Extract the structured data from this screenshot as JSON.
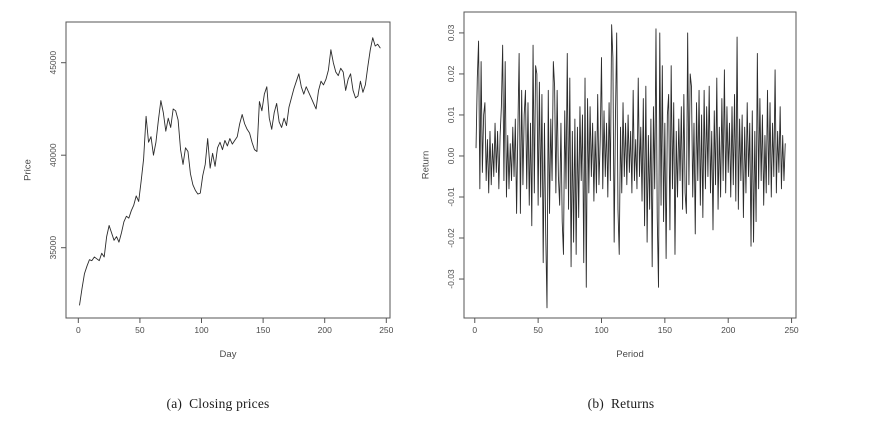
{
  "styles": {
    "background": "#ffffff",
    "axis_color": "#555555",
    "text_color": "#4a4a4a",
    "series_color": "#2b2b2b"
  },
  "figure": {
    "panels": [
      {
        "caption_tag": "(a)",
        "caption_text": "Closing prices"
      },
      {
        "caption_tag": "(b)",
        "caption_text": "Returns"
      }
    ]
  },
  "chart_data": [
    {
      "type": "line",
      "title": "",
      "xlabel": "Day",
      "ylabel": "Price",
      "legend": null,
      "grid": false,
      "xticks": [
        0,
        50,
        100,
        150,
        200,
        250
      ],
      "xtick_labels": [
        "0",
        "50",
        "100",
        "150",
        "200",
        "250"
      ],
      "yticks": [
        35000,
        40000,
        45000
      ],
      "ytick_labels": [
        "35000",
        "40000",
        "45000"
      ],
      "xlim": [
        -10,
        253
      ],
      "ylim": [
        31200,
        47200
      ],
      "x_start": 1,
      "x_step": 2,
      "values": [
        31900,
        32800,
        33600,
        34000,
        34350,
        34300,
        34500,
        34400,
        34300,
        34700,
        34500,
        35600,
        36200,
        35800,
        35400,
        35600,
        35300,
        35800,
        36400,
        36700,
        36600,
        37000,
        37300,
        37800,
        37500,
        38600,
        39800,
        42100,
        40700,
        41000,
        40000,
        40700,
        41900,
        42950,
        42300,
        41300,
        42000,
        41500,
        42500,
        42400,
        41900,
        40300,
        39500,
        40400,
        40200,
        39000,
        38400,
        38100,
        37900,
        37950,
        38900,
        39500,
        40900,
        39300,
        40100,
        39400,
        40400,
        40700,
        40300,
        40800,
        40500,
        40900,
        40600,
        40800,
        41000,
        41700,
        42200,
        41700,
        41400,
        41200,
        40700,
        40300,
        40200,
        42900,
        42400,
        43300,
        43700,
        42000,
        41400,
        42300,
        42800,
        41800,
        41500,
        42000,
        41600,
        42600,
        43100,
        43600,
        44000,
        44400,
        43700,
        43300,
        43700,
        43400,
        43100,
        42800,
        42500,
        43500,
        44000,
        43800,
        44100,
        44600,
        45700,
        45000,
        44500,
        44300,
        44700,
        44500,
        43500,
        44100,
        44400,
        43500,
        43100,
        43200,
        44000,
        43400,
        43800,
        44800,
        45700,
        46350,
        45900,
        46000,
        45800
      ]
    },
    {
      "type": "line",
      "title": "",
      "xlabel": "Period",
      "ylabel": "Return",
      "legend": null,
      "grid": false,
      "xticks": [
        0,
        50,
        100,
        150,
        200,
        250
      ],
      "xtick_labels": [
        "0",
        "50",
        "100",
        "150",
        "200",
        "250"
      ],
      "yticks": [
        0.03,
        0.02,
        0.01,
        0.0,
        -0.01,
        -0.02,
        -0.03
      ],
      "ytick_labels": [
        "0.03",
        "0.02",
        "0.01",
        "0.00",
        "-0.01",
        "-0.02",
        "-0.03"
      ],
      "xlim": [
        -8.5,
        253.5
      ],
      "ylim": [
        -0.0395,
        0.0351
      ],
      "x_start": 1,
      "x_step": 1,
      "values": [
        0.002,
        0.019,
        0.028,
        -0.008,
        0.023,
        -0.004,
        0.01,
        0.013,
        -0.006,
        0.004,
        -0.009,
        0.006,
        -0.007,
        0.003,
        -0.005,
        0.008,
        -0.004,
        0.006,
        -0.008,
        0.005,
        0.012,
        0.027,
        -0.006,
        0.023,
        -0.01,
        0.005,
        -0.008,
        0.003,
        -0.006,
        0.007,
        -0.005,
        0.009,
        -0.014,
        0.006,
        0.025,
        -0.014,
        0.016,
        -0.007,
        0.01,
        0.016,
        -0.008,
        0.013,
        -0.012,
        0.008,
        -0.017,
        0.027,
        -0.009,
        0.022,
        0.02,
        -0.012,
        0.018,
        -0.01,
        0.015,
        -0.026,
        0.008,
        -0.019,
        -0.037,
        0.016,
        -0.014,
        0.009,
        -0.006,
        0.023,
        0.017,
        -0.009,
        0.016,
        -0.005,
        -0.012,
        0.008,
        -0.016,
        -0.024,
        0.011,
        -0.008,
        0.025,
        -0.013,
        0.019,
        -0.027,
        0.006,
        -0.021,
        0.009,
        -0.024,
        0.007,
        -0.015,
        0.012,
        -0.006,
        0.01,
        -0.026,
        0.019,
        -0.032,
        0.014,
        -0.009,
        0.012,
        -0.005,
        0.008,
        -0.011,
        0.006,
        -0.009,
        0.015,
        -0.007,
        0.004,
        0.024,
        -0.008,
        0.011,
        -0.005,
        0.008,
        -0.01,
        0.013,
        -0.006,
        0.032,
        0.024,
        -0.021,
        0.009,
        0.03,
        -0.013,
        -0.024,
        0.007,
        -0.009,
        0.013,
        -0.005,
        0.008,
        -0.007,
        0.01,
        -0.004,
        0.006,
        -0.009,
        0.016,
        -0.006,
        0.004,
        -0.008,
        0.019,
        -0.005,
        0.007,
        -0.011,
        0.014,
        -0.017,
        0.017,
        -0.021,
        0.005,
        -0.013,
        0.009,
        -0.027,
        0.012,
        -0.008,
        0.031,
        -0.015,
        -0.032,
        0.03,
        -0.012,
        0.022,
        -0.016,
        0.008,
        -0.025,
        0.01,
        0.015,
        -0.018,
        0.022,
        -0.008,
        0.013,
        -0.024,
        0.006,
        -0.01,
        0.009,
        -0.006,
        0.012,
        -0.013,
        0.015,
        -0.009,
        -0.014,
        0.03,
        -0.007,
        0.02,
        0.017,
        -0.01,
        0.008,
        -0.019,
        0.013,
        -0.006,
        0.016,
        -0.012,
        0.01,
        -0.015,
        0.016,
        -0.008,
        0.012,
        -0.005,
        0.017,
        -0.009,
        0.006,
        -0.018,
        0.011,
        -0.007,
        0.019,
        -0.013,
        0.007,
        -0.01,
        0.014,
        -0.006,
        0.021,
        -0.009,
        0.012,
        -0.004,
        0.008,
        -0.01,
        0.012,
        -0.007,
        0.015,
        -0.011,
        0.029,
        -0.013,
        0.009,
        -0.006,
        0.01,
        -0.015,
        0.007,
        -0.009,
        0.013,
        -0.005,
        0.008,
        -0.022,
        0.011,
        -0.021,
        0.006,
        -0.016,
        0.025,
        -0.008,
        0.014,
        -0.006,
        0.01,
        -0.012,
        0.005,
        -0.009,
        0.016,
        -0.007,
        0.013,
        -0.01,
        0.008,
        -0.005,
        0.021,
        -0.009,
        0.006,
        -0.004,
        0.012,
        -0.008,
        0.005,
        -0.006,
        0.003
      ]
    }
  ]
}
